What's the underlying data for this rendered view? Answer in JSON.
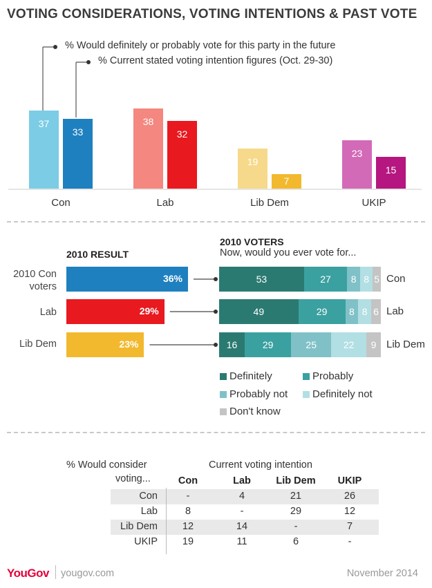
{
  "title": "VOTING CONSIDERATIONS, VOTING INTENTIONS & PAST VOTE",
  "legend": {
    "would_consider": "% Would definitely or probably vote for this party in the future",
    "current": "% Current stated voting intention figures (Oct. 29-30)"
  },
  "chart_data": [
    {
      "type": "bar",
      "categories": [
        "Con",
        "Lab",
        "Lib Dem",
        "UKIP"
      ],
      "series": [
        {
          "name": "% Would definitely or probably vote for this party in the future",
          "values": [
            37,
            38,
            19,
            23
          ]
        },
        {
          "name": "% Current stated voting intention figures (Oct. 29-30)",
          "values": [
            33,
            32,
            7,
            15
          ]
        }
      ],
      "colors": {
        "consider": [
          "#7ccce6",
          "#f4877f",
          "#f6d98a",
          "#d36ab8"
        ],
        "current": [
          "#1f80bf",
          "#e8191f",
          "#f2b92e",
          "#b5167f"
        ]
      }
    },
    {
      "type": "bar",
      "title": "2010 RESULT",
      "categories": [
        "2010 Con voters",
        "Lab",
        "Lib Dem"
      ],
      "values": [
        36,
        29,
        23
      ],
      "labels": [
        "36%",
        "29%",
        "23%"
      ],
      "colors": [
        "#1f80bf",
        "#e8191f",
        "#f2b92e"
      ]
    },
    {
      "type": "bar",
      "title": "2010 VOTERS",
      "subtitle": "Now, would you ever vote for...",
      "categories": [
        "Con",
        "Lab",
        "Lib Dem"
      ],
      "series": [
        {
          "name": "Definitely",
          "values": [
            53,
            49,
            16
          ],
          "color": "#2b7a72"
        },
        {
          "name": "Probably",
          "values": [
            27,
            29,
            29
          ],
          "color": "#3ba0a0"
        },
        {
          "name": "Probably not",
          "values": [
            8,
            8,
            25
          ],
          "color": "#80c1c7"
        },
        {
          "name": "Definitely not",
          "values": [
            8,
            8,
            22
          ],
          "color": "#b2dfe3"
        },
        {
          "name": "Don't know",
          "values": [
            5,
            6,
            9
          ],
          "color": "#c4c4c4"
        }
      ]
    }
  ],
  "table": {
    "corner_label_1": "% Would consider",
    "corner_label_2": "voting...",
    "group_header": "Current voting intention",
    "columns": [
      "Con",
      "Lab",
      "Lib Dem",
      "UKIP"
    ],
    "rows": [
      {
        "label": "Con",
        "cells": [
          "-",
          "4",
          "21",
          "26"
        ]
      },
      {
        "label": "Lab",
        "cells": [
          "8",
          "-",
          "29",
          "12"
        ]
      },
      {
        "label": "Lib Dem",
        "cells": [
          "12",
          "14",
          "-",
          "7"
        ]
      },
      {
        "label": "UKIP",
        "cells": [
          "19",
          "11",
          "6",
          "-"
        ]
      }
    ]
  },
  "footer": {
    "brand": "YouGov",
    "site": "yougov.com",
    "date": "November 2014"
  }
}
